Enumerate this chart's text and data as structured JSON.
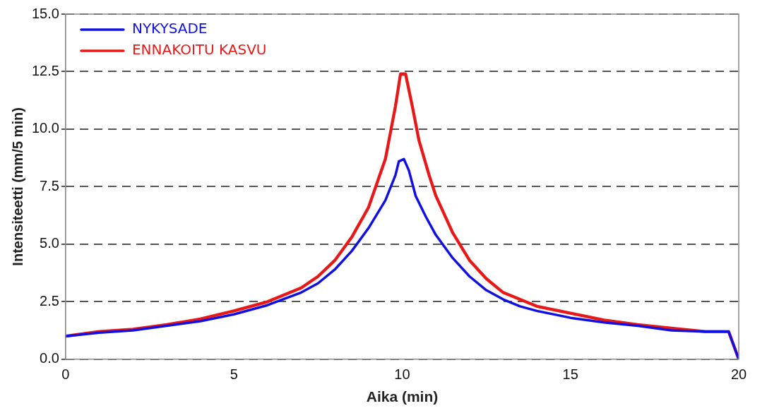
{
  "chart_data": {
    "type": "line",
    "xlabel": "Aika (min)",
    "ylabel": "Intensiteetti (mm/5 min)",
    "xlim": [
      0,
      20
    ],
    "xticks": [
      0,
      5,
      10,
      15,
      20
    ],
    "ylim": [
      0,
      15
    ],
    "yticks": [
      {
        "value": 0,
        "label": "0.0"
      },
      2.5,
      {
        "value": 5,
        "label": "5.0"
      },
      7.5,
      {
        "value": 10,
        "label": "10.0"
      },
      12.5,
      {
        "value": 15,
        "label": "15.0"
      }
    ],
    "grid": "y",
    "legend": "top left",
    "line_style": "solid",
    "marker": "none",
    "series": [
      {
        "name": "NYKYSADE",
        "color": "#1010e0",
        "x": [
          0,
          1,
          2,
          3,
          4,
          5,
          6,
          7,
          7.5,
          8,
          8.5,
          9,
          9.5,
          9.8,
          9.9,
          10.05,
          10.2,
          10.4,
          10.7,
          11,
          11.5,
          12,
          12.5,
          13,
          13.5,
          14,
          15,
          16,
          17,
          18,
          19,
          19.7,
          20
        ],
        "values": [
          1.0,
          1.15,
          1.25,
          1.45,
          1.65,
          1.95,
          2.35,
          2.9,
          3.3,
          3.9,
          4.7,
          5.7,
          6.9,
          8.0,
          8.6,
          8.7,
          8.2,
          7.1,
          6.2,
          5.4,
          4.4,
          3.6,
          3.0,
          2.6,
          2.3,
          2.1,
          1.8,
          1.6,
          1.45,
          1.25,
          1.2,
          1.2,
          0
        ]
      },
      {
        "name": "ENNAKOITU KASVU",
        "color": "#e81818",
        "x": [
          0,
          1,
          2,
          3,
          4,
          5,
          6,
          7,
          7.5,
          8,
          8.5,
          9,
          9.5,
          9.8,
          9.95,
          10.1,
          10.3,
          10.5,
          10.8,
          11,
          11.5,
          12,
          12.5,
          13,
          13.5,
          14,
          15,
          16,
          17,
          18,
          19,
          19.7,
          20
        ],
        "values": [
          1.0,
          1.2,
          1.3,
          1.5,
          1.75,
          2.1,
          2.5,
          3.1,
          3.6,
          4.3,
          5.3,
          6.6,
          8.7,
          11.0,
          12.4,
          12.4,
          11.0,
          9.5,
          8.0,
          7.1,
          5.5,
          4.3,
          3.5,
          2.9,
          2.6,
          2.3,
          2.0,
          1.7,
          1.5,
          1.35,
          1.2,
          1.2,
          0
        ]
      }
    ]
  }
}
